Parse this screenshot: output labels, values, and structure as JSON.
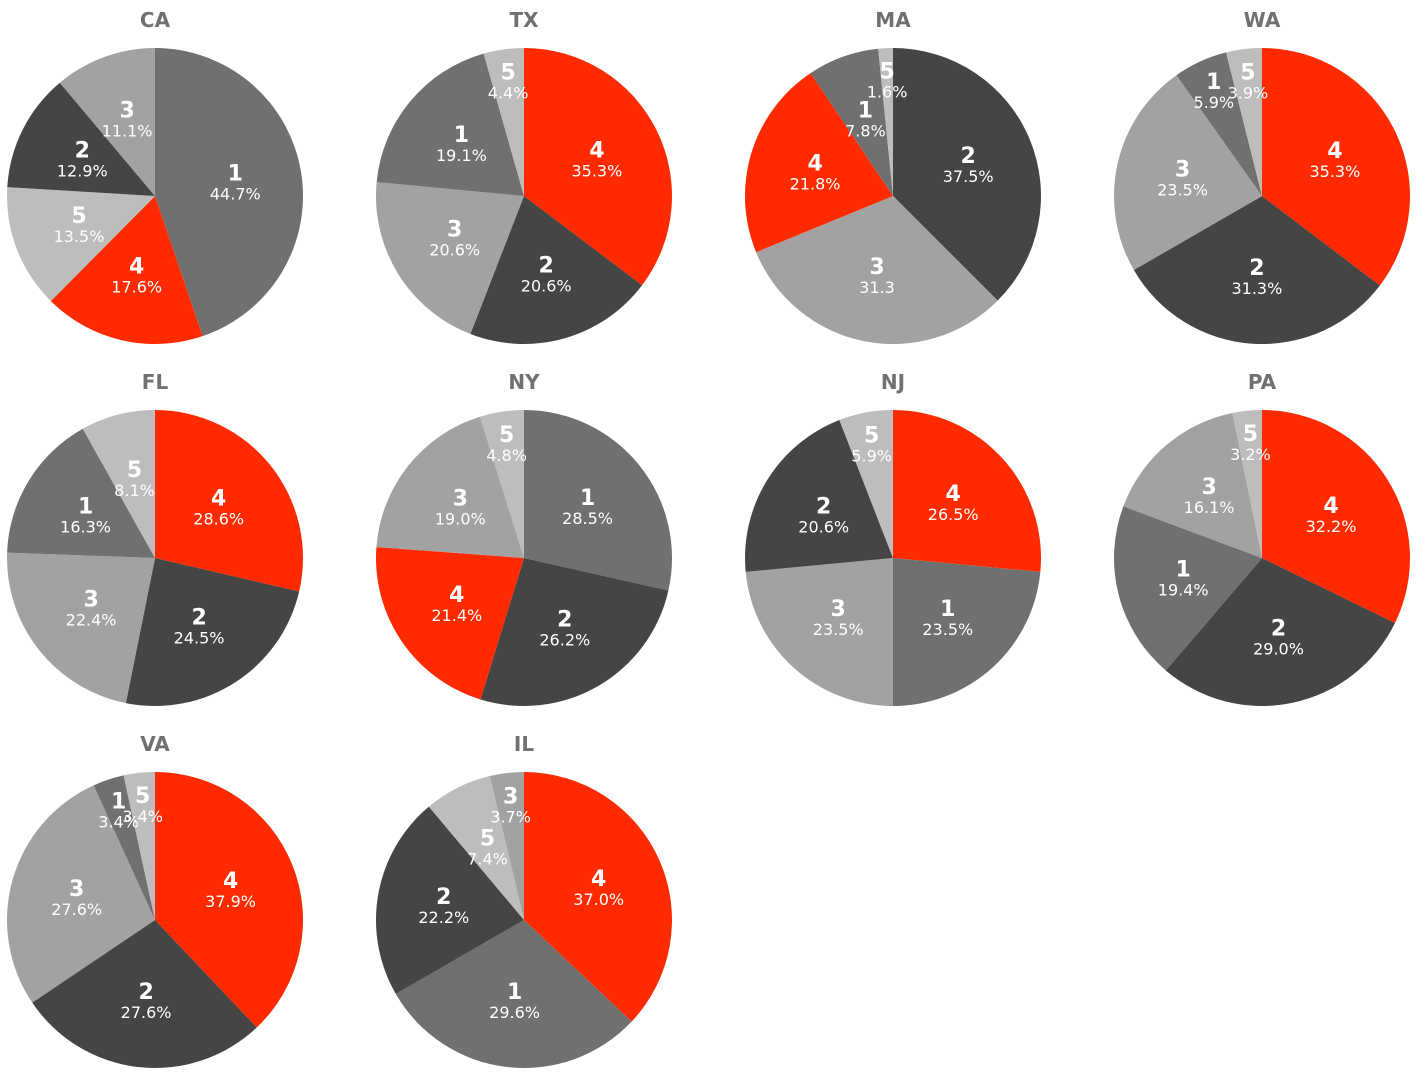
{
  "colors": {
    "1": "#707070",
    "2": "#454545",
    "3": "#a3a2a2",
    "4": "#ff2a00",
    "5": "#bdbdbd"
  },
  "chart_data": [
    {
      "type": "pie",
      "title": "CA",
      "slices": [
        {
          "label": "1",
          "display": "44.7%",
          "value": 44.7
        },
        {
          "label": "4",
          "display": "17.6%",
          "value": 17.6
        },
        {
          "label": "5",
          "display": "13.5%",
          "value": 13.5
        },
        {
          "label": "2",
          "display": "12.9%",
          "value": 12.9
        },
        {
          "label": "3",
          "display": "11.1%",
          "value": 11.1
        }
      ]
    },
    {
      "type": "pie",
      "title": "TX",
      "slices": [
        {
          "label": "4",
          "display": "35.3%",
          "value": 35.3
        },
        {
          "label": "2",
          "display": "20.6%",
          "value": 20.6
        },
        {
          "label": "3",
          "display": "20.6%",
          "value": 20.6
        },
        {
          "label": "1",
          "display": "19.1%",
          "value": 19.1
        },
        {
          "label": "5",
          "display": "4.4%",
          "value": 4.4
        }
      ]
    },
    {
      "type": "pie",
      "title": "MA",
      "slices": [
        {
          "label": "2",
          "display": "37.5%",
          "value": 37.5
        },
        {
          "label": "3",
          "display": "31.3",
          "value": 31.3
        },
        {
          "label": "4",
          "display": "21.8%",
          "value": 21.8
        },
        {
          "label": "1",
          "display": "7.8%",
          "value": 7.8
        },
        {
          "label": "5",
          "display": "1.6%",
          "value": 1.6
        }
      ]
    },
    {
      "type": "pie",
      "title": "WA",
      "slices": [
        {
          "label": "4",
          "display": "35.3%",
          "value": 35.3
        },
        {
          "label": "2",
          "display": "31.3%",
          "value": 31.3
        },
        {
          "label": "3",
          "display": "23.5%",
          "value": 23.5
        },
        {
          "label": "1",
          "display": "5.9%",
          "value": 5.9
        },
        {
          "label": "5",
          "display": "3.9%",
          "value": 3.9
        }
      ]
    },
    {
      "type": "pie",
      "title": "FL",
      "slices": [
        {
          "label": "4",
          "display": "28.6%",
          "value": 28.6
        },
        {
          "label": "2",
          "display": "24.5%",
          "value": 24.5
        },
        {
          "label": "3",
          "display": "22.4%",
          "value": 22.4
        },
        {
          "label": "1",
          "display": "16.3%",
          "value": 16.3
        },
        {
          "label": "5",
          "display": "8.1%",
          "value": 8.1
        }
      ]
    },
    {
      "type": "pie",
      "title": "NY",
      "slices": [
        {
          "label": "1",
          "display": "28.5%",
          "value": 28.5
        },
        {
          "label": "2",
          "display": "26.2%",
          "value": 26.2
        },
        {
          "label": "4",
          "display": "21.4%",
          "value": 21.4
        },
        {
          "label": "3",
          "display": "19.0%",
          "value": 19.0
        },
        {
          "label": "5",
          "display": "4.8%",
          "value": 4.8
        }
      ]
    },
    {
      "type": "pie",
      "title": "NJ",
      "slices": [
        {
          "label": "4",
          "display": "26.5%",
          "value": 26.5
        },
        {
          "label": "1",
          "display": "23.5%",
          "value": 23.5
        },
        {
          "label": "3",
          "display": "23.5%",
          "value": 23.5
        },
        {
          "label": "2",
          "display": "20.6%",
          "value": 20.6
        },
        {
          "label": "5",
          "display": "5.9%",
          "value": 5.9
        }
      ]
    },
    {
      "type": "pie",
      "title": "PA",
      "slices": [
        {
          "label": "4",
          "display": "32.2%",
          "value": 32.2
        },
        {
          "label": "2",
          "display": "29.0%",
          "value": 29.0
        },
        {
          "label": "1",
          "display": "19.4%",
          "value": 19.4
        },
        {
          "label": "3",
          "display": "16.1%",
          "value": 16.1
        },
        {
          "label": "5",
          "display": "3.2%",
          "value": 3.2
        }
      ]
    },
    {
      "type": "pie",
      "title": "VA",
      "slices": [
        {
          "label": "4",
          "display": "37.9%",
          "value": 37.9
        },
        {
          "label": "2",
          "display": "27.6%",
          "value": 27.6
        },
        {
          "label": "3",
          "display": "27.6%",
          "value": 27.6
        },
        {
          "label": "1",
          "display": "3.4%",
          "value": 3.4
        },
        {
          "label": "5",
          "display": "3.4%",
          "value": 3.4
        }
      ]
    },
    {
      "type": "pie",
      "title": "IL",
      "slices": [
        {
          "label": "4",
          "display": "37.0%",
          "value": 37.0
        },
        {
          "label": "1",
          "display": "29.6%",
          "value": 29.6
        },
        {
          "label": "2",
          "display": "22.2%",
          "value": 22.2
        },
        {
          "label": "5",
          "display": "7.4%",
          "value": 7.4
        },
        {
          "label": "3",
          "display": "3.7%",
          "value": 3.7
        }
      ]
    }
  ]
}
